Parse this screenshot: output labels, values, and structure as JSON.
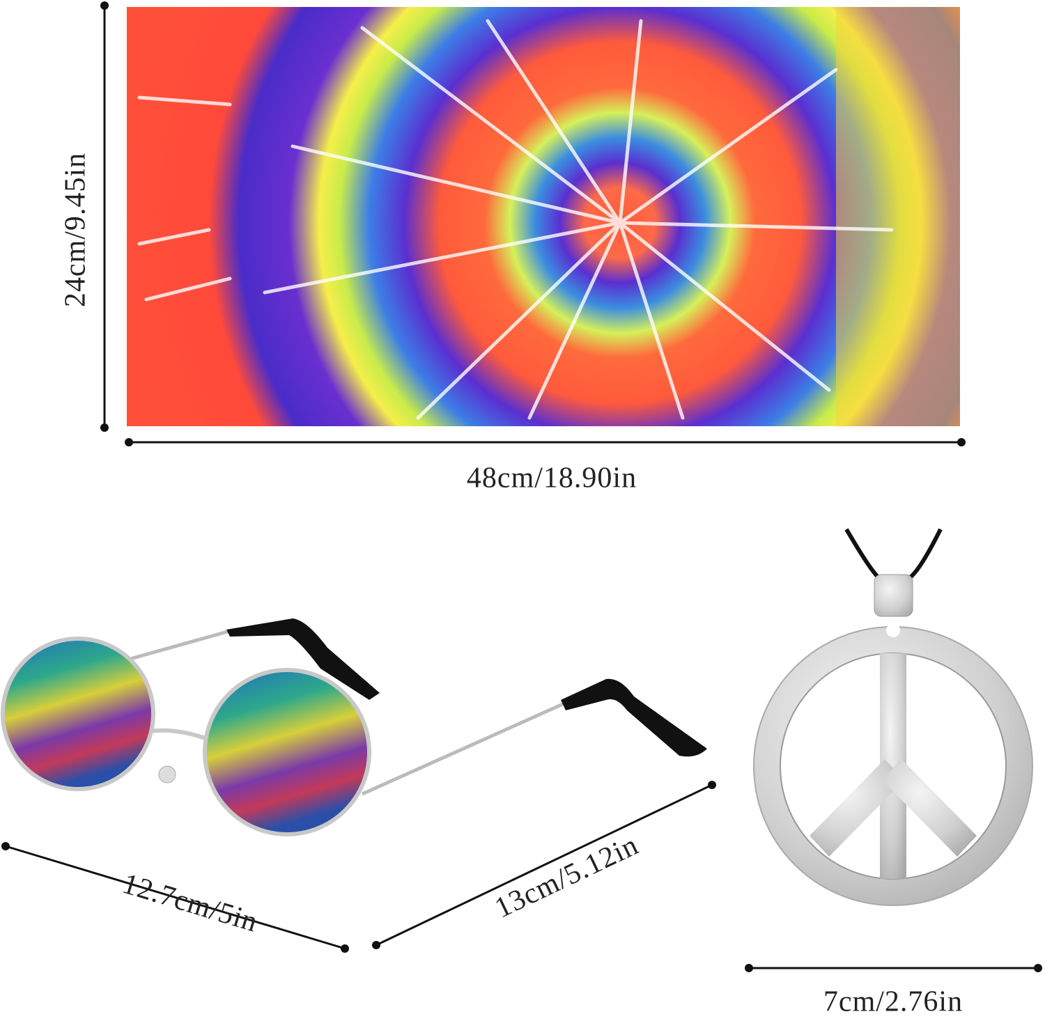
{
  "bandana": {
    "height_label": "24cm/9.45in",
    "width_label": "48cm/18.90in"
  },
  "sunglasses": {
    "width_label": "12.7cm/5in",
    "length_label": "13cm/5.12in"
  },
  "pendant": {
    "width_label": "7cm/2.76in"
  }
}
